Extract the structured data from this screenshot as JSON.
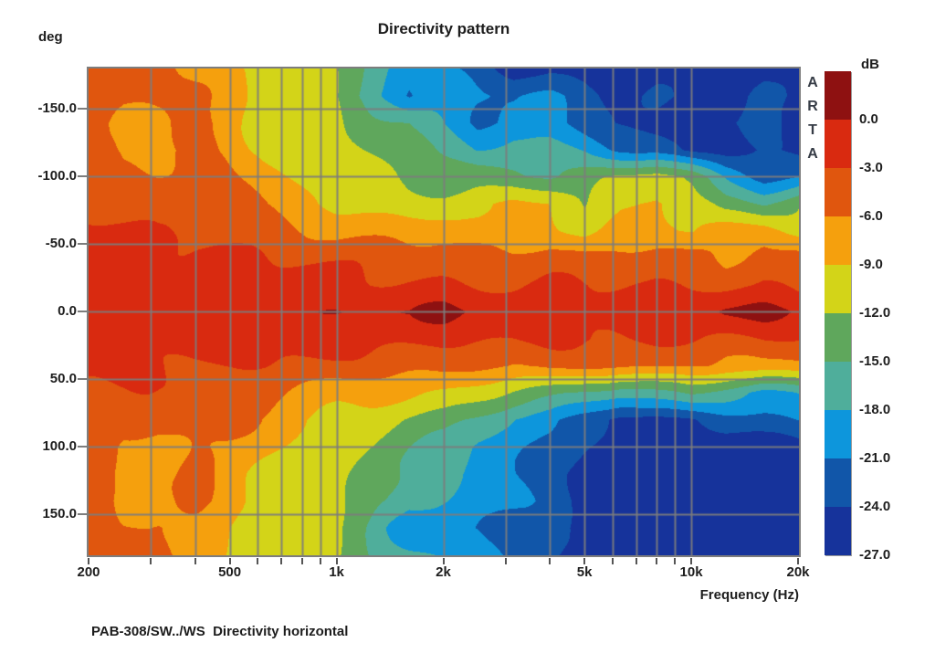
{
  "chart": {
    "title": "Directivity pattern",
    "caption": "PAB-308/SW../WS  Directivity horizontal",
    "watermark": "ARTA",
    "watermark_color": "#363c46",
    "grid_color": "#7d7d7d",
    "text_color": "#1d1d1d",
    "y_axis": {
      "unit": "deg",
      "tick_labels": [
        "-150.0",
        "-100.0",
        "-50.0",
        "0.0",
        "50.0",
        "100.0",
        "150.0"
      ],
      "tick_values": [
        -150,
        -100,
        -50,
        0,
        50,
        100,
        150
      ],
      "range_deg": [
        -180,
        180
      ]
    },
    "x_axis": {
      "title": "Frequency (Hz)",
      "scale": "log",
      "tick_labels": [
        "200",
        "500",
        "1k",
        "2k",
        "5k",
        "10k",
        "20k"
      ],
      "tick_values": [
        200,
        500,
        1000,
        2000,
        5000,
        10000,
        20000
      ],
      "gridlines_hz": [
        300,
        400,
        500,
        600,
        700,
        800,
        900,
        1000,
        2000,
        3000,
        4000,
        5000,
        6000,
        7000,
        8000,
        9000,
        10000
      ],
      "minor_tick_marks_hz": [
        200,
        300,
        400,
        500,
        600,
        700,
        800,
        900,
        1000,
        2000,
        3000,
        4000,
        5000,
        6000,
        7000,
        8000,
        9000,
        10000,
        20000
      ],
      "range_hz": [
        200,
        20000
      ]
    },
    "colorbar": {
      "unit": "dB",
      "tick_labels": [
        "0.0",
        "-3.0",
        "-6.0",
        "-9.0",
        "-12.0",
        "-15.0",
        "-18.0",
        "-21.0",
        "-24.0",
        "-27.0"
      ],
      "tick_values": [
        0,
        -3,
        -6,
        -9,
        -12,
        -15,
        -18,
        -21,
        -24,
        -27
      ],
      "colors": [
        "#8e1111",
        "#d92a10",
        "#e0560e",
        "#f5a00d",
        "#d3d418",
        "#5fa75c",
        "#4fae9b",
        "#0d96dc",
        "#1156a9",
        "#16339b"
      ]
    }
  },
  "chart_data": {
    "type": "heatmap",
    "title": "Directivity pattern",
    "xlabel": "Frequency (Hz)",
    "ylabel": "deg",
    "x_scale": "log",
    "x_range_hz": [
      200,
      20000
    ],
    "y_range_deg": [
      -180,
      180
    ],
    "value_unit": "dB",
    "level_step_db": 3,
    "color_levels_db": [
      0,
      -3,
      -6,
      -9,
      -12,
      -15,
      -18,
      -21,
      -24,
      -27
    ],
    "band_colors": [
      "#8e1111",
      "#d92a10",
      "#e0560e",
      "#f5a00d",
      "#d3d418",
      "#5fa75c",
      "#4fae9b",
      "#0d96dc",
      "#1156a9",
      "#16339b"
    ],
    "x_frequencies_hz": [
      200,
      250,
      315,
      400,
      500,
      630,
      800,
      1000,
      1250,
      1600,
      2000,
      2500,
      3150,
      4000,
      5000,
      6300,
      8000,
      10000,
      12500,
      16000,
      20000
    ],
    "y_angles_deg": [
      -180,
      -160,
      -140,
      -120,
      -100,
      -80,
      -60,
      -40,
      -20,
      0,
      20,
      40,
      60,
      80,
      100,
      120,
      140,
      160,
      180
    ],
    "values_db": [
      [
        -4.0,
        -4.5,
        -4.5,
        -7.5,
        -8.5,
        -10.5,
        -10.5,
        -12.0,
        -16.0,
        -20.0,
        -21.0,
        -23.0,
        -25.5,
        -24.5,
        -25.5,
        -26.0,
        -25.5,
        -26.0,
        -25.5,
        -25.5,
        -26.0
      ],
      [
        -4.0,
        -5.0,
        -4.5,
        -5.5,
        -8.0,
        -10.0,
        -10.5,
        -12.5,
        -16.5,
        -21.5,
        -18.5,
        -20.0,
        -21.5,
        -21.0,
        -22.5,
        -25.5,
        -24.0,
        -25.5,
        -25.0,
        -23.0,
        -25.5
      ],
      [
        -4.5,
        -6.5,
        -6.5,
        -4.5,
        -7.5,
        -10.0,
        -10.5,
        -11.5,
        -13.5,
        -15.0,
        -18.0,
        -21.0,
        -19.5,
        -20.0,
        -22.5,
        -24.0,
        -25.5,
        -25.5,
        -24.0,
        -22.5,
        -25.5
      ],
      [
        -4.5,
        -7.0,
        -7.0,
        -5.0,
        -7.5,
        -9.5,
        -10.5,
        -10.5,
        -12.0,
        -13.5,
        -16.5,
        -18.5,
        -16.5,
        -16.5,
        -18.0,
        -21.0,
        -22.5,
        -25.5,
        -25.5,
        -24.0,
        -25.5
      ],
      [
        -3.5,
        -6.5,
        -6.0,
        -4.5,
        -6.5,
        -8.0,
        -9.5,
        -10.5,
        -10.5,
        -12.5,
        -13.5,
        -13.5,
        -14.5,
        -15.5,
        -14.0,
        -11.5,
        -10.5,
        -13.0,
        -18.5,
        -22.0,
        -21.5
      ],
      [
        -3.0,
        -4.5,
        -4.5,
        -4.0,
        -5.0,
        -6.5,
        -8.0,
        -9.5,
        -10.0,
        -10.5,
        -10.5,
        -10.0,
        -8.0,
        -8.5,
        -12.5,
        -10.0,
        -8.0,
        -9.5,
        -13.5,
        -15.0,
        -11.5
      ],
      [
        -2.0,
        -2.5,
        -3.5,
        -3.5,
        -4.0,
        -4.5,
        -5.5,
        -6.5,
        -7.0,
        -7.5,
        -7.5,
        -8.5,
        -9.0,
        -7.5,
        -10.0,
        -7.5,
        -7.5,
        -9.5,
        -8.0,
        -7.5,
        -10.0
      ],
      [
        -1.8,
        -2.0,
        -2.2,
        -2.5,
        -3.0,
        -3.2,
        -3.5,
        -4.0,
        -4.2,
        -4.5,
        -4.5,
        -5.0,
        -5.5,
        -5.0,
        -5.5,
        -5.5,
        -5.0,
        -5.5,
        -6.5,
        -4.5,
        -5.5
      ],
      [
        -1.2,
        -1.4,
        -1.5,
        -1.5,
        -1.7,
        -1.9,
        -2.0,
        -2.1,
        -2.3,
        -2.4,
        -2.5,
        -2.7,
        -3.0,
        -2.8,
        -3.0,
        -3.0,
        -2.8,
        -3.0,
        -3.3,
        -2.5,
        -3.5
      ],
      [
        -0.8,
        -0.6,
        -1.0,
        -1.0,
        -0.8,
        -0.6,
        -0.5,
        0.5,
        0.5,
        -0.5,
        0.8,
        -0.5,
        -1.0,
        -1.0,
        -1.2,
        -1.0,
        -1.0,
        -0.8,
        0.5,
        0.5,
        -0.5
      ],
      [
        -1.2,
        -1.4,
        -1.5,
        -1.5,
        -1.6,
        -1.8,
        -2.0,
        -2.0,
        -2.2,
        -2.4,
        -2.5,
        -2.6,
        -3.0,
        -2.8,
        -3.0,
        -3.0,
        -2.8,
        -3.0,
        -3.4,
        -3.0,
        -3.6
      ],
      [
        -1.8,
        -2.0,
        -2.5,
        -2.5,
        -3.0,
        -3.2,
        -3.5,
        -4.0,
        -4.2,
        -4.5,
        -4.5,
        -5.2,
        -5.5,
        -5.0,
        -5.8,
        -5.5,
        -5.2,
        -5.8,
        -6.5,
        -6.0,
        -6.8
      ],
      [
        -2.5,
        -3.5,
        -4.0,
        -3.8,
        -4.2,
        -5.0,
        -6.5,
        -7.5,
        -8.0,
        -8.5,
        -9.5,
        -11.0,
        -12.5,
        -13.5,
        -15.0,
        -16.5,
        -15.5,
        -14.5,
        -17.0,
        -19.5,
        -17.5
      ],
      [
        -3.2,
        -5.0,
        -5.0,
        -4.5,
        -5.5,
        -7.0,
        -8.5,
        -10.0,
        -11.0,
        -12.5,
        -13.5,
        -16.0,
        -18.5,
        -20.0,
        -23.0,
        -25.5,
        -25.0,
        -24.5,
        -22.5,
        -21.5,
        -21.0
      ],
      [
        -4.0,
        -6.5,
        -6.5,
        -5.0,
        -6.5,
        -8.0,
        -9.5,
        -10.5,
        -12.0,
        -14.0,
        -16.0,
        -18.5,
        -19.5,
        -22.0,
        -24.5,
        -26.0,
        -26.0,
        -26.0,
        -25.5,
        -25.5,
        -25.5
      ],
      [
        -4.5,
        -7.0,
        -7.0,
        -5.5,
        -7.5,
        -9.5,
        -10.5,
        -11.0,
        -13.0,
        -15.5,
        -17.0,
        -19.5,
        -20.5,
        -23.0,
        -25.0,
        -26.0,
        -26.0,
        -26.0,
        -25.5,
        -25.5,
        -26.0
      ],
      [
        -4.5,
        -6.8,
        -6.8,
        -5.5,
        -8.0,
        -10.0,
        -10.5,
        -11.5,
        -14.0,
        -17.0,
        -18.0,
        -19.0,
        -21.0,
        -22.5,
        -25.0,
        -26.0,
        -26.0,
        -26.0,
        -26.0,
        -25.5,
        -26.0
      ],
      [
        -4.2,
        -5.5,
        -5.0,
        -7.0,
        -9.0,
        -10.5,
        -10.8,
        -12.0,
        -15.0,
        -20.5,
        -19.5,
        -20.5,
        -22.0,
        -23.5,
        -25.5,
        -26.0,
        -26.0,
        -26.0,
        -26.0,
        -26.0,
        -26.0
      ],
      [
        -4.5,
        -4.8,
        -5.0,
        -7.5,
        -9.5,
        -10.5,
        -10.5,
        -11.5,
        -15.5,
        -17.0,
        -18.5,
        -19.5,
        -21.5,
        -23.0,
        -25.5,
        -26.0,
        -26.0,
        -26.0,
        -26.0,
        -26.0,
        -26.0
      ]
    ]
  }
}
